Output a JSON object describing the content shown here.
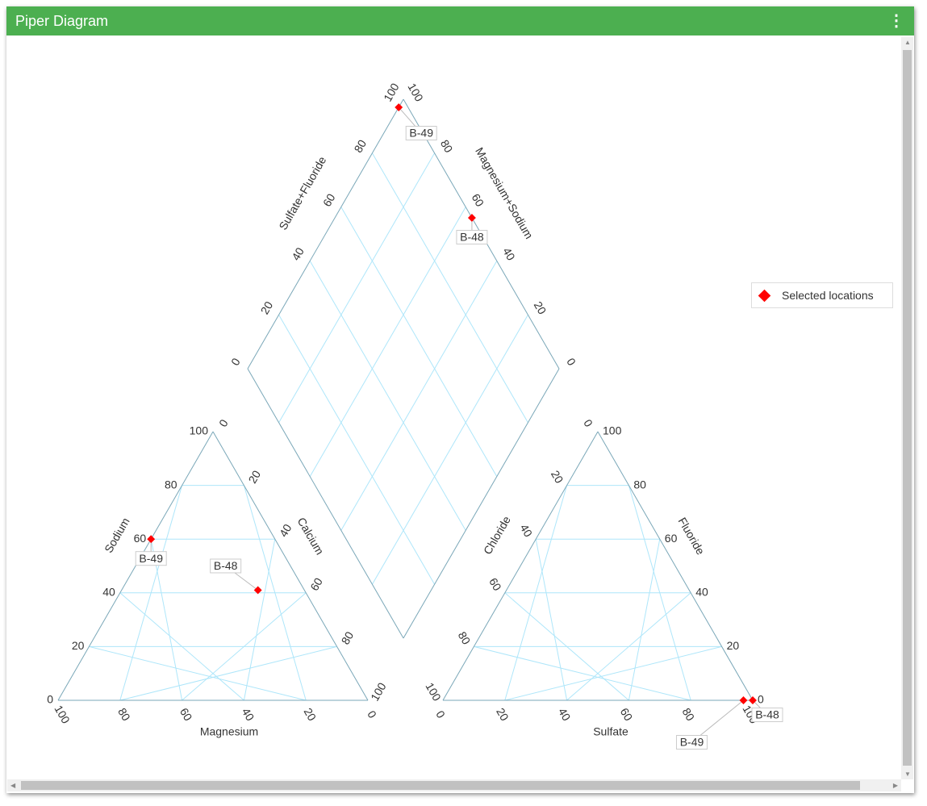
{
  "header": {
    "title": "Piper Diagram",
    "menu_icon": "more-vertical-icon"
  },
  "legend": {
    "label": "Selected locations",
    "color": "#ff0000",
    "marker": "diamond"
  },
  "chart_data": {
    "type": "scatter",
    "subtype": "piper",
    "ticks": [
      "0",
      "20",
      "40",
      "60",
      "80",
      "100"
    ],
    "grid": true,
    "grid_color": "#aee6fa",
    "axis_color": "#7aa7b8",
    "marker_color": "#ff0000",
    "cation_triangle": {
      "left_axis": "Sodium",
      "right_axis": "Calcium",
      "bottom_axis": "Magnesium"
    },
    "anion_triangle": {
      "left_axis": "Chloride",
      "right_axis": "Fluoride",
      "bottom_axis": "Sulfate"
    },
    "diamond": {
      "left_axis": "Sulfate+Fluoride",
      "right_axis": "Magnesium+Sodium"
    },
    "samples": [
      {
        "name": "B-48",
        "Sodium": 41,
        "Calcium": 44,
        "Magnesium": 15,
        "Chloride": 0,
        "Fluoride": 0,
        "Sulfate": 100
      },
      {
        "name": "B-49",
        "Sodium": 60,
        "Calcium": 0,
        "Magnesium": 40,
        "Chloride": 3,
        "Fluoride": 0,
        "Sulfate": 97
      }
    ]
  }
}
